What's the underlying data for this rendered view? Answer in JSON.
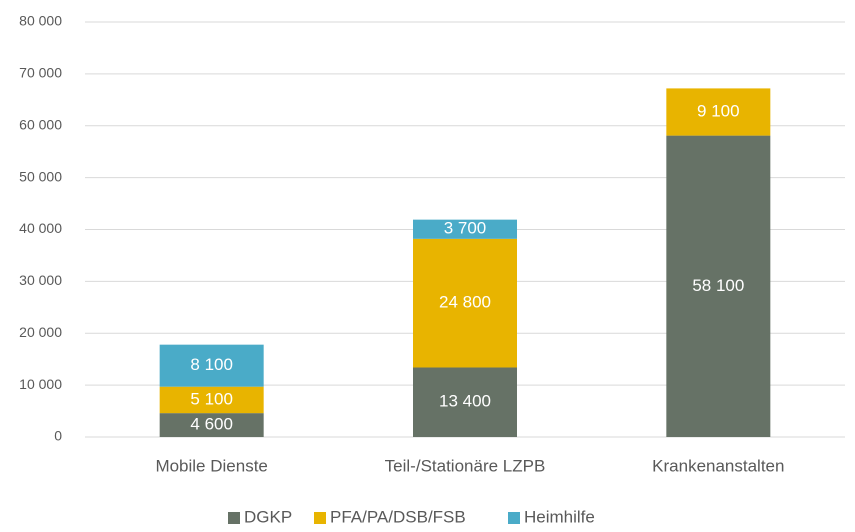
{
  "chart_data": {
    "type": "stacked_bar",
    "categories": [
      "Mobile Dienste",
      "Teil-/Stationäre LZPB",
      "Krankenanstalten"
    ],
    "series": [
      {
        "name": "DGKP",
        "color": "#667266",
        "values": [
          4600,
          13400,
          58100
        ],
        "value_labels": [
          "4 600",
          "13 400",
          "58 100"
        ]
      },
      {
        "name": "PFA/PA/DSB/FSB",
        "color": "#e8b400",
        "values": [
          5100,
          24800,
          9100
        ],
        "value_labels": [
          "5 100",
          "24 800",
          "9 100"
        ]
      },
      {
        "name": "Heimhilfe",
        "color": "#4aabc8",
        "values": [
          8100,
          3700,
          null
        ],
        "value_labels": [
          "8 100",
          "3 700",
          null
        ]
      }
    ],
    "ylim": [
      0,
      80000
    ],
    "yticks": [
      0,
      {
        "value": 10000,
        "label": "10 000"
      },
      {
        "value": 20000,
        "label": "20 000"
      },
      {
        "value": 30000,
        "label": "30 000"
      },
      {
        "value": 40000,
        "label": "40 000"
      },
      {
        "value": 50000,
        "label": "50 000"
      },
      {
        "value": 60000,
        "label": "60 000"
      },
      {
        "value": 70000,
        "label": "70 000"
      },
      {
        "value": 80000,
        "label": "80 000"
      }
    ],
    "grid": true,
    "legend": "bottom"
  }
}
